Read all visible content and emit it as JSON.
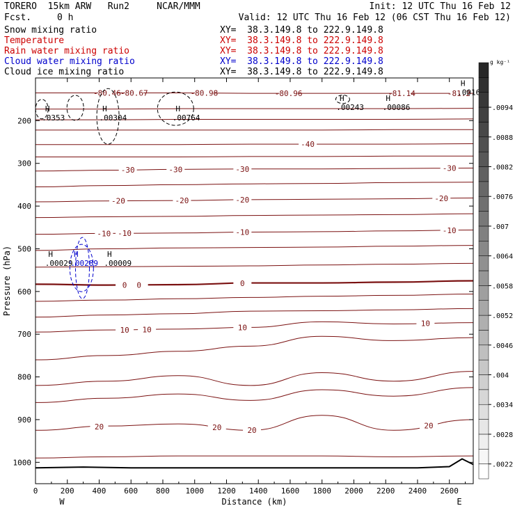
{
  "header": {
    "model": "TORERO  15km ARW   Run2     NCAR/MMM",
    "forecast_label": "Fcst.",
    "forecast_value": "0 h",
    "init": "Init: 12 UTC Thu 16 Feb 12",
    "valid": "Valid: 12 UTC Thu 16 Feb 12 (06 CST Thu 16 Feb 12)"
  },
  "legend": {
    "items": [
      {
        "label": "Snow mixing ratio",
        "color": "#000000",
        "xy": "XY=  38.3.149.8 to 222.9.149.8",
        "xy_color": "#000000"
      },
      {
        "label": "Temperature",
        "color": "#cc0000",
        "xy": "XY=  38.3.149.8 to 222.9.149.8",
        "xy_color": "#cc0000"
      },
      {
        "label": "Rain water mixing ratio",
        "color": "#cc0000",
        "xy": "XY=  38.3.149.8 to 222.9.149.8",
        "xy_color": "#cc0000"
      },
      {
        "label": "Cloud water mixing ratio",
        "color": "#0000cc",
        "xy": "XY=  38.3.149.8 to 222.9.149.8",
        "xy_color": "#0000cc"
      },
      {
        "label": "Cloud ice mixing ratio",
        "color": "#000000",
        "xy": "XY=  38.3.149.8 to 222.9.149.8",
        "xy_color": "#000000"
      }
    ]
  },
  "chart_data": {
    "type": "contour-cross-section",
    "xlabel": "Distance (km)",
    "ylabel": "Pressure (hPa)",
    "xlim": [
      0,
      2750
    ],
    "ylim": [
      1050,
      100
    ],
    "x_ticks": [
      0,
      200,
      400,
      600,
      800,
      1000,
      1200,
      1400,
      1600,
      1800,
      2000,
      2200,
      2400,
      2600
    ],
    "y_ticks": [
      200,
      300,
      400,
      500,
      600,
      700,
      800,
      900,
      1000
    ],
    "end_labels": {
      "left": "W",
      "right": "E"
    },
    "colorbar": {
      "unit": "g kg⁻¹",
      "min": 0.0019,
      "max": 0.0103,
      "step": 0.0003,
      "tick_labels": [
        ".0022",
        ".0028",
        ".0034",
        ".004",
        ".0046",
        ".0052",
        ".0058",
        ".0064",
        ".007",
        ".0076",
        ".0082",
        ".0088",
        ".0094"
      ],
      "tick_values": [
        0.0022,
        0.0028,
        0.0034,
        0.004,
        0.0046,
        0.0052,
        0.0058,
        0.0064,
        0.007,
        0.0076,
        0.0082,
        0.0088,
        0.0094
      ]
    },
    "temperature_contours": [
      {
        "p": [
          135,
          135,
          135,
          136,
          136,
          136,
          136
        ],
        "x": [
          0,
          450,
          900,
          1350,
          1800,
          2250,
          2750
        ],
        "labels": [
          {
            "x": 450,
            "text": "-80.46"
          },
          {
            "x": 620,
            "text": "-80.67"
          },
          {
            "x": 1060,
            "text": "-80.98"
          },
          {
            "x": 1590,
            "text": "-80.96"
          },
          {
            "x": 2300,
            "text": "-81.14"
          },
          {
            "x": 2660,
            "text": "-81.2"
          }
        ]
      },
      {
        "p": [
          173,
          173,
          172,
          172,
          172,
          172,
          171
        ]
      },
      {
        "p": [
          198,
          198,
          197,
          197,
          197,
          197,
          196
        ]
      },
      {
        "p": [
          222,
          222,
          222,
          222,
          222,
          221,
          221
        ]
      },
      {
        "p": [
          256,
          256,
          256,
          255,
          255,
          255,
          254
        ],
        "labels": [
          {
            "x": 1710,
            "text": "-40"
          }
        ]
      },
      {
        "p": [
          285,
          285,
          285,
          284,
          284,
          283,
          283
        ]
      },
      {
        "p": [
          318,
          316,
          314,
          313,
          313,
          312,
          311
        ],
        "labels": [
          {
            "x": 580,
            "text": "-30"
          },
          {
            "x": 880,
            "text": "-30"
          },
          {
            "x": 1300,
            "text": "-30"
          },
          {
            "x": 2600,
            "text": "-30"
          }
        ]
      },
      {
        "p": [
          355,
          352,
          350,
          348,
          347,
          345,
          344
        ]
      },
      {
        "p": [
          390,
          388,
          387,
          385,
          384,
          383,
          381
        ],
        "labels": [
          {
            "x": 520,
            "text": "-20"
          },
          {
            "x": 920,
            "text": "-20"
          },
          {
            "x": 1300,
            "text": "-20"
          },
          {
            "x": 2550,
            "text": "-20"
          }
        ]
      },
      {
        "p": [
          427,
          425,
          424,
          422,
          421,
          420,
          418
        ]
      },
      {
        "p": [
          466,
          464,
          463,
          461,
          460,
          458,
          456
        ],
        "labels": [
          {
            "x": 430,
            "text": "-10"
          },
          {
            "x": 560,
            "text": "-10"
          },
          {
            "x": 1300,
            "text": "-10"
          },
          {
            "x": 2600,
            "text": "-10"
          }
        ]
      },
      {
        "p": [
          504,
          500,
          498,
          497,
          496,
          494,
          492
        ]
      },
      {
        "p": [
          543,
          542,
          541,
          540,
          538,
          536,
          534
        ]
      },
      {
        "p": [
          583,
          585,
          584,
          580,
          580,
          578,
          575
        ],
        "bold": true,
        "labels": [
          {
            "x": 560,
            "text": "0"
          },
          {
            "x": 650,
            "text": "0"
          },
          {
            "x": 1300,
            "text": "0"
          }
        ]
      },
      {
        "p": [
          623,
          620,
          617,
          614,
          611,
          609,
          606
        ]
      },
      {
        "p": [
          660,
          655,
          652,
          646,
          645,
          643,
          640
        ]
      },
      {
        "p": [
          695,
          690,
          688,
          684,
          671,
          676,
          673
        ],
        "labels": [
          {
            "x": 560,
            "text": "10"
          },
          {
            "x": 700,
            "text": "10"
          },
          {
            "x": 1300,
            "text": "10"
          },
          {
            "x": 2450,
            "text": "10"
          }
        ]
      },
      {
        "p": [
          760,
          750,
          740,
          728,
          705,
          715,
          708
        ]
      },
      {
        "p": [
          820,
          810,
          797,
          820,
          790,
          810,
          787
        ]
      },
      {
        "p": [
          860,
          850,
          840,
          855,
          830,
          845,
          825
        ]
      },
      {
        "p": [
          925,
          915,
          910,
          925,
          890,
          925,
          900
        ],
        "labels": [
          {
            "x": 400,
            "text": "20"
          },
          {
            "x": 1140,
            "text": "20"
          },
          {
            "x": 1360,
            "text": "20"
          },
          {
            "x": 2470,
            "text": "20"
          }
        ]
      },
      {
        "p": [
          990,
          987,
          985,
          985,
          985,
          987,
          985
        ]
      }
    ],
    "ground_surface": {
      "x": [
        0,
        300,
        600,
        1200,
        1800,
        2400,
        2600,
        2680,
        2750
      ],
      "p": [
        1013,
        1011,
        1013,
        1013,
        1013,
        1013,
        1010,
        992,
        1005
      ]
    },
    "mixing_ratio_maxima": [
      {
        "species": "snow",
        "x": 40,
        "p": 185,
        "label": ".0353"
      },
      {
        "species": "snow",
        "x": 400,
        "p": 185,
        "label": ".00304"
      },
      {
        "species": "snow",
        "x": 860,
        "p": 185,
        "label": ".00764"
      },
      {
        "species": "snow",
        "x": 1890,
        "p": 160,
        "label": ".00243"
      },
      {
        "species": "snow",
        "x": 2180,
        "p": 160,
        "label": ".00086"
      },
      {
        "species": "snow",
        "x": 2650,
        "p": 125,
        "label": ".0016"
      },
      {
        "species": "snow",
        "x": 60,
        "p": 525,
        "label": ".00029"
      },
      {
        "species": "cloud_water",
        "x": 220,
        "p": 525,
        "label": ".00289"
      },
      {
        "species": "snow",
        "x": 430,
        "p": 525,
        "label": ".00009"
      }
    ]
  }
}
